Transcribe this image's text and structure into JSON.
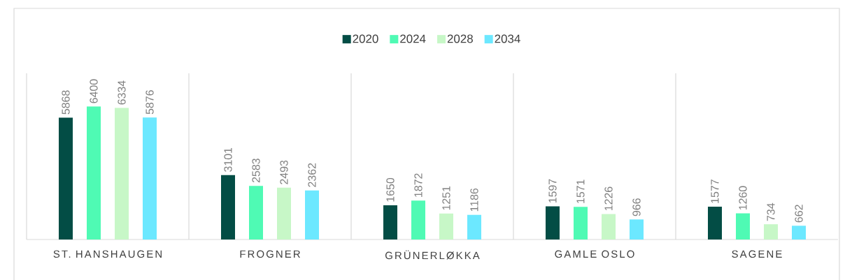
{
  "chart_data": {
    "type": "bar",
    "categories": [
      "ST. HANSHAUGEN",
      "FROGNER",
      "GRÜNERLØKKA",
      "GAMLE OSLO",
      "SAGENE"
    ],
    "series": [
      {
        "name": "2020",
        "color": "#034d45",
        "values": [
          5868,
          3101,
          1650,
          1597,
          1577
        ]
      },
      {
        "name": "2024",
        "color": "#4ffab4",
        "values": [
          6400,
          2583,
          1872,
          1571,
          1260
        ]
      },
      {
        "name": "2028",
        "color": "#c7f7c7",
        "values": [
          6334,
          2493,
          1251,
          1226,
          734
        ]
      },
      {
        "name": "2034",
        "color": "#6ce8ff",
        "values": [
          5876,
          2362,
          1186,
          966,
          662
        ]
      }
    ],
    "ylim": [
      0,
      8000
    ],
    "data_labels": true,
    "legend": "top"
  }
}
